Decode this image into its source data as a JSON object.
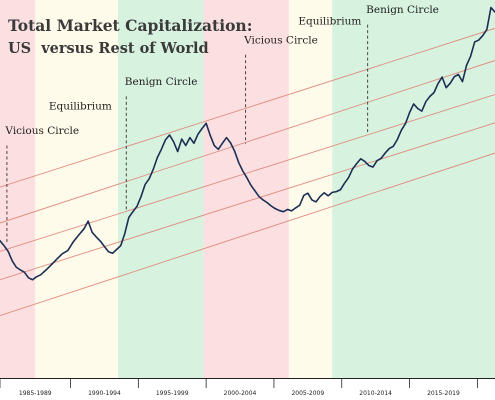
{
  "chart_data": {
    "type": "line",
    "title": "Total Market Capitalization:",
    "subtitle": "US  versus Rest of World",
    "xlabel": "",
    "ylabel": "",
    "grid": false,
    "legend": "none",
    "xlim": [
      1985,
      2021.5
    ],
    "ylim": [
      0,
      100
    ],
    "colors": {
      "line": "#1b2f55",
      "trend": "#e08c80",
      "green_band": "#d7f2df",
      "red_band": "#fbdfe1",
      "yellow_band": "#fffbea",
      "axis": "#222222"
    },
    "regimes": [
      {
        "from": 1985.0,
        "to": 1987.6,
        "kind": "red"
      },
      {
        "from": 1987.6,
        "to": 1993.7,
        "kind": "yellow"
      },
      {
        "from": 1993.7,
        "to": 2000.0,
        "kind": "green"
      },
      {
        "from": 2000.0,
        "to": 2006.3,
        "kind": "red"
      },
      {
        "from": 2006.3,
        "to": 2009.5,
        "kind": "yellow"
      },
      {
        "from": 2009.5,
        "to": 2021.5,
        "kind": "green"
      }
    ],
    "periods": [
      "1985-1989",
      "1990-1994",
      "1995-1999",
      "2000-2004",
      "2005-2009",
      "2010-2014",
      "2015-2019"
    ],
    "period_ticks": [
      1985.0,
      1990.2,
      1995.2,
      2000.2,
      2005.2,
      2010.2,
      2015.2,
      2020.2
    ],
    "annotations": [
      {
        "text": "Vicious Circle",
        "x": 1985.4,
        "label_y": 64.5,
        "line_top": 61.5,
        "line_bottom": 35.5
      },
      {
        "text": "Equilibrium",
        "x": 1988.6,
        "label_y": 71.0
      },
      {
        "text": "Benign Circle",
        "x": 1994.2,
        "label_y": 77.5,
        "line_top": 74.5,
        "line_bottom": 44.0
      },
      {
        "text": "Vicious Circle",
        "x": 2003.0,
        "label_y": 88.5,
        "line_top": 85.5,
        "line_bottom": 62.0
      },
      {
        "text": "Equilibrium",
        "x": 2007.0,
        "label_y": 93.5
      },
      {
        "text": "Benign Circle",
        "x": 2012.0,
        "label_y": 96.5,
        "line_top": 93.5,
        "line_bottom": 64.5
      }
    ],
    "trend_lines": [
      {
        "x": [
          1985.0,
          2021.5
        ],
        "y": [
          50.5,
          92.5
        ]
      },
      {
        "x": [
          1985.0,
          2021.5
        ],
        "y": [
          41.0,
          84.0
        ]
      },
      {
        "x": [
          1985.0,
          2021.5
        ],
        "y": [
          33.5,
          75.0
        ]
      },
      {
        "x": [
          1985.0,
          2021.5
        ],
        "y": [
          26.0,
          67.5
        ]
      },
      {
        "x": [
          1985.0,
          2021.5
        ],
        "y": [
          16.5,
          59.5
        ]
      }
    ],
    "series": [
      {
        "x": [
          1985.0,
          1985.3,
          1985.6,
          1985.9,
          1986.2,
          1986.5,
          1986.8,
          1987.1,
          1987.4,
          1987.7,
          1988.0,
          1988.4,
          1988.8,
          1989.2,
          1989.6,
          1990.0,
          1990.4,
          1990.8,
          1991.2,
          1991.5,
          1991.8,
          1992.1,
          1992.4,
          1992.7,
          1993.0,
          1993.3,
          1993.6,
          1993.9,
          1994.2,
          1994.5,
          1994.8,
          1995.1,
          1995.4,
          1995.7,
          1996.0,
          1996.3,
          1996.6,
          1996.9,
          1997.2,
          1997.5,
          1997.8,
          1998.1,
          1998.4,
          1998.7,
          1999.0,
          1999.3,
          1999.6,
          1999.9,
          2000.2,
          2000.5,
          2000.8,
          2001.1,
          2001.4,
          2001.7,
          2002.0,
          2002.3,
          2002.6,
          2002.9,
          2003.2,
          2003.5,
          2003.8,
          2004.1,
          2004.4,
          2004.7,
          2005.0,
          2005.3,
          2005.6,
          2005.9,
          2006.2,
          2006.5,
          2006.8,
          2007.1,
          2007.4,
          2007.7,
          2008.0,
          2008.3,
          2008.6,
          2008.9,
          2009.2,
          2009.5,
          2009.8,
          2010.1,
          2010.4,
          2010.7,
          2011.0,
          2011.3,
          2011.6,
          2011.9,
          2012.2,
          2012.5,
          2012.8,
          2013.1,
          2013.4,
          2013.7,
          2014.0,
          2014.3,
          2014.6,
          2014.9,
          2015.2,
          2015.5,
          2015.8,
          2016.1,
          2016.4,
          2016.7,
          2017.0,
          2017.3,
          2017.6,
          2017.9,
          2018.2,
          2018.5,
          2018.8,
          2019.1,
          2019.4,
          2019.7,
          2020.0,
          2020.3,
          2020.6,
          2020.9,
          2021.2,
          2021.5
        ],
        "values": [
          36.3,
          35.0,
          33.5,
          31.0,
          29.3,
          28.6,
          28.0,
          26.5,
          26.0,
          26.8,
          27.3,
          28.6,
          30.0,
          31.5,
          32.9,
          33.7,
          36.0,
          37.8,
          39.5,
          41.5,
          38.5,
          37.3,
          36.2,
          34.8,
          33.4,
          33.0,
          34.0,
          35.0,
          38.2,
          42.5,
          44.0,
          45.4,
          48.0,
          51.2,
          52.7,
          55.2,
          58.3,
          60.5,
          63.0,
          64.3,
          62.5,
          59.9,
          63.2,
          61.5,
          63.6,
          62.1,
          64.5,
          66.0,
          67.4,
          64.2,
          61.5,
          60.5,
          62.1,
          63.6,
          62.2,
          60.0,
          57.0,
          54.8,
          53.0,
          51.0,
          49.5,
          48.0,
          47.1,
          46.4,
          45.5,
          44.8,
          44.3,
          44.0,
          44.6,
          44.2,
          45.0,
          45.7,
          48.3,
          48.9,
          47.1,
          46.6,
          48.0,
          49.0,
          48.2,
          49.1,
          49.3,
          49.8,
          51.5,
          53.0,
          55.3,
          56.7,
          58.0,
          57.3,
          56.2,
          55.8,
          57.5,
          58.1,
          59.5,
          60.7,
          61.3,
          63.1,
          65.6,
          67.3,
          70.2,
          72.5,
          71.3,
          70.6,
          73.1,
          74.5,
          75.5,
          77.9,
          79.6,
          76.8,
          78.0,
          79.7,
          80.3,
          78.4,
          82.7,
          85.1,
          88.9,
          89.4,
          90.6,
          92.2,
          98.0,
          96.8
        ]
      }
    ]
  }
}
